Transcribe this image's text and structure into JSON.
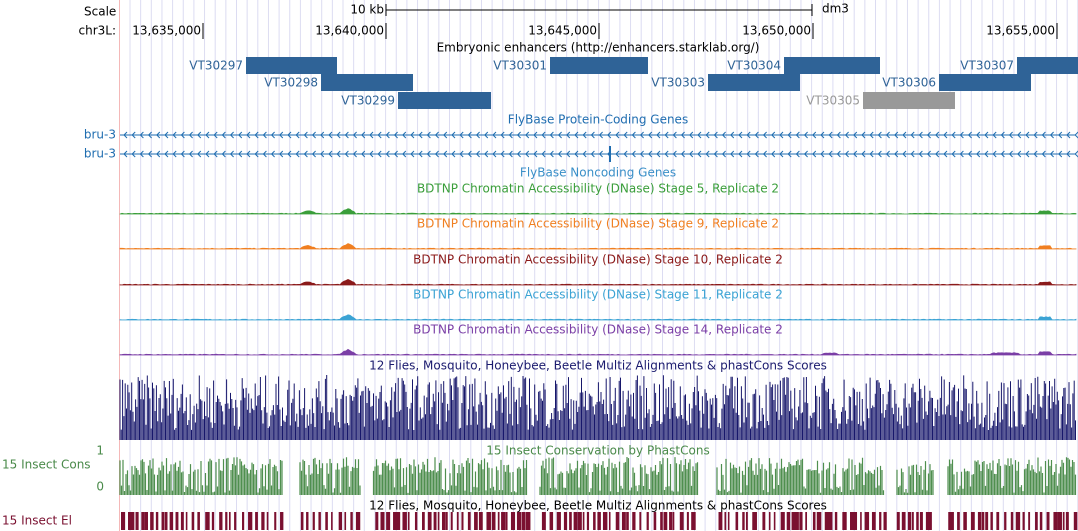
{
  "header": {
    "scale_label": "Scale",
    "scale_bar": "10 kb",
    "assembly": "dm3",
    "chrom": "chr3L:",
    "positions": [
      "13,635,000",
      "13,640,000",
      "13,645,000",
      "13,650,000",
      "13,655,000"
    ]
  },
  "enhancers": {
    "title": "Embryonic enhancers (http://enhancers.starklab.org/)",
    "items": [
      "VT30297",
      "VT30298",
      "VT30299",
      "VT30301",
      "VT30303",
      "VT30304",
      "VT30305",
      "VT30306",
      "VT30307"
    ]
  },
  "genes": {
    "title": "FlyBase Protein-Coding Genes",
    "transcripts": [
      "bru-3",
      "bru-3"
    ]
  },
  "noncoding": {
    "title": "FlyBase Noncoding Genes"
  },
  "dnase": {
    "tracks": [
      "BDTNP Chromatin Accessibility (DNase) Stage 5, Replicate 2",
      "BDTNP Chromatin Accessibility (DNase) Stage 9, Replicate 2",
      "BDTNP Chromatin Accessibility (DNase) Stage 10, Replicate 2",
      "BDTNP Chromatin Accessibility (DNase) Stage 11, Replicate 2",
      "BDTNP Chromatin Accessibility (DNase) Stage 14, Replicate 2"
    ]
  },
  "multiz": {
    "title": "12 Flies, Mosquito, Honeybee, Beetle Multiz Alignments & phastCons Scores"
  },
  "phastcons": {
    "title": "15 Insect Conservation by PhastCons",
    "side_label": "15 Insect Cons",
    "max_label": "1",
    "min_label": "0"
  },
  "elements": {
    "title": "12 Flies, Mosquito, Honeybee, Beetle Multiz Alignments & phastCons Scores",
    "side_label": "15 Insect El"
  }
}
